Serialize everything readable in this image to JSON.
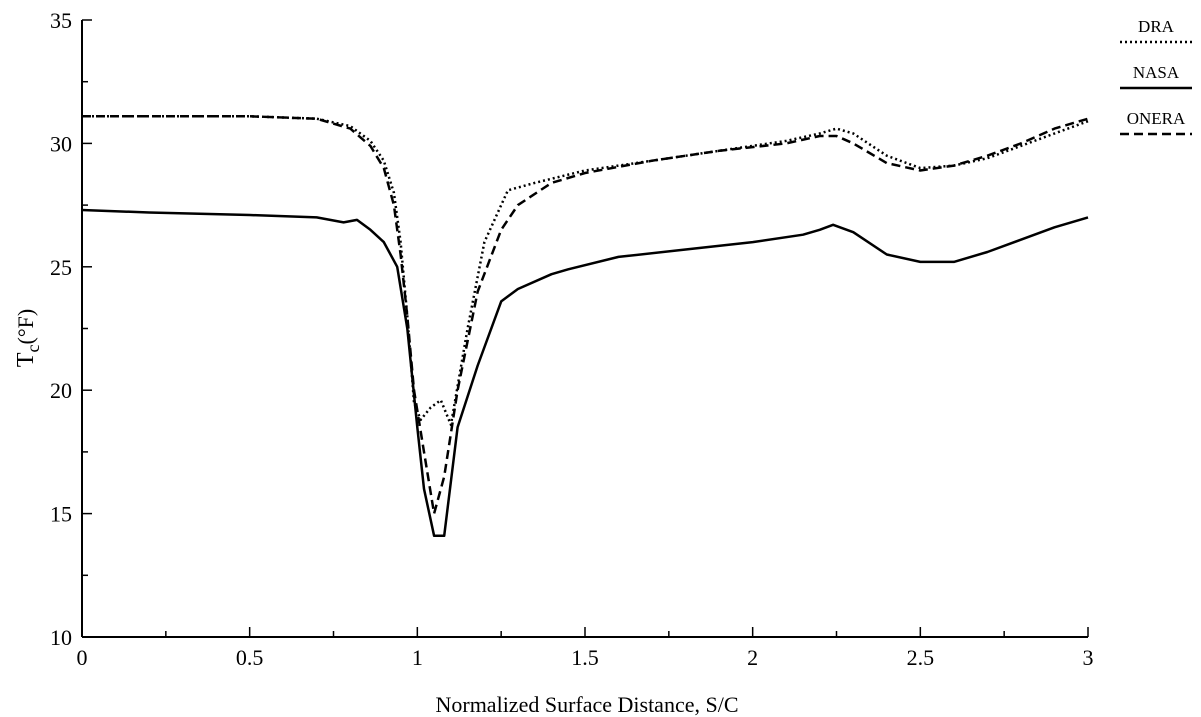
{
  "chart_data": {
    "type": "line",
    "title": "",
    "xlabel": "Normalized Surface Distance, S/C",
    "ylabel": {
      "main": "T",
      "sub": "c",
      "unit": "(°F)"
    },
    "xlim": [
      0,
      3
    ],
    "ylim": [
      10,
      35
    ],
    "x_ticks": [
      0,
      0.5,
      1,
      1.5,
      2,
      2.5,
      3
    ],
    "x_tick_labels": [
      "0",
      "0.5",
      "1",
      "1.5",
      "2",
      "2.5",
      "3"
    ],
    "y_ticks": [
      10,
      15,
      20,
      25,
      30,
      35
    ],
    "y_tick_labels": [
      "10",
      "15",
      "20",
      "25",
      "30",
      "35"
    ],
    "grid": false,
    "legend_position": "right, outside top",
    "series": [
      {
        "name": "DRA",
        "line_style": "dotted",
        "x": [
          0,
          0.2,
          0.5,
          0.7,
          0.8,
          0.86,
          0.9,
          0.93,
          0.95,
          0.97,
          0.99,
          1.01,
          1.04,
          1.07,
          1.1,
          1.15,
          1.2,
          1.27,
          1.35,
          1.5,
          1.7,
          1.9,
          2.1,
          2.2,
          2.25,
          2.3,
          2.4,
          2.5,
          2.6,
          2.7,
          2.8,
          2.9,
          3.0
        ],
        "values": [
          31.1,
          31.1,
          31.1,
          31.0,
          30.7,
          30.1,
          29.3,
          28.0,
          26.0,
          23.0,
          19.5,
          18.8,
          19.3,
          19.6,
          18.6,
          22.5,
          26.0,
          28.1,
          28.4,
          28.9,
          29.3,
          29.7,
          30.1,
          30.4,
          30.6,
          30.4,
          29.5,
          29.0,
          29.1,
          29.4,
          29.9,
          30.4,
          30.9
        ]
      },
      {
        "name": "NASA",
        "line_style": "solid",
        "x": [
          0,
          0.2,
          0.5,
          0.7,
          0.78,
          0.82,
          0.86,
          0.9,
          0.94,
          0.97,
          1.0,
          1.02,
          1.05,
          1.08,
          1.12,
          1.18,
          1.25,
          1.3,
          1.4,
          1.45,
          1.6,
          1.8,
          2.0,
          2.15,
          2.2,
          2.24,
          2.3,
          2.4,
          2.5,
          2.6,
          2.7,
          2.8,
          2.9,
          3.0
        ],
        "values": [
          27.3,
          27.2,
          27.1,
          27.0,
          26.8,
          26.9,
          26.5,
          26.0,
          25.0,
          22.5,
          18.5,
          16.0,
          14.1,
          14.1,
          18.5,
          21.0,
          23.6,
          24.1,
          24.7,
          24.9,
          25.4,
          25.7,
          26.0,
          26.3,
          26.5,
          26.7,
          26.4,
          25.5,
          25.2,
          25.2,
          25.6,
          26.1,
          26.6,
          27.0
        ]
      },
      {
        "name": "ONERA",
        "line_style": "dashed",
        "x": [
          0,
          0.2,
          0.5,
          0.7,
          0.8,
          0.86,
          0.9,
          0.93,
          0.95,
          0.97,
          0.99,
          1.02,
          1.05,
          1.08,
          1.12,
          1.18,
          1.25,
          1.3,
          1.4,
          1.5,
          1.7,
          1.9,
          2.1,
          2.2,
          2.25,
          2.3,
          2.4,
          2.5,
          2.6,
          2.7,
          2.8,
          2.9,
          3.0
        ],
        "values": [
          31.1,
          31.1,
          31.1,
          31.0,
          30.6,
          29.9,
          29.0,
          27.5,
          25.5,
          23.0,
          20.0,
          17.5,
          15.0,
          16.5,
          20.0,
          24.0,
          26.5,
          27.5,
          28.4,
          28.8,
          29.3,
          29.7,
          30.0,
          30.3,
          30.3,
          30.0,
          29.2,
          28.9,
          29.1,
          29.5,
          30.0,
          30.6,
          31.0
        ]
      }
    ]
  }
}
